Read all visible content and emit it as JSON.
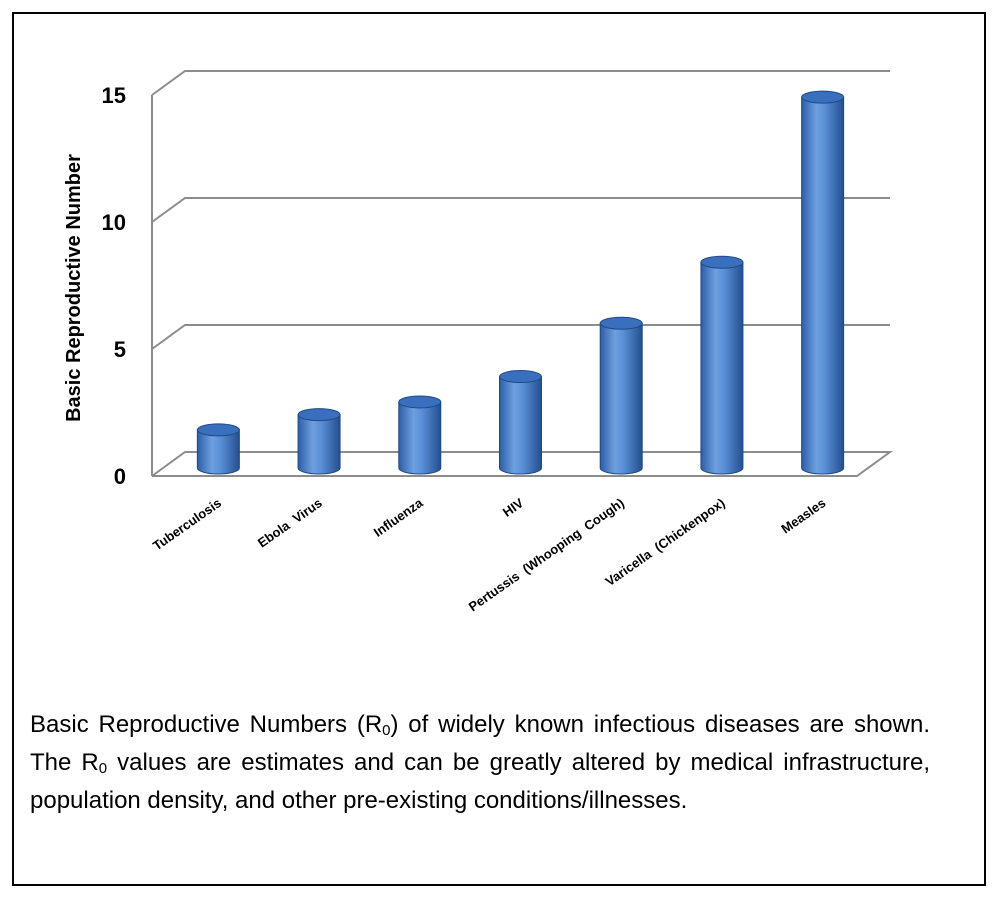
{
  "chart_data": {
    "type": "bar",
    "style": "3d-cylinder",
    "categories": [
      "Tuberculosis",
      "Ebola  Virus",
      "Influenza",
      "HIV",
      "Pertussis  (Whooping  Cough)",
      "Varicella  (Chickenpox)",
      "Measles"
    ],
    "values": [
      1.5,
      2.1,
      2.6,
      3.6,
      5.7,
      8.1,
      14.6
    ],
    "ylabel": "Basic Reproductive Number",
    "xlabel": "",
    "ylim": [
      0,
      15
    ],
    "yticks": [
      0,
      5,
      10,
      15
    ],
    "grid": true,
    "bar_color": "#4f81c7",
    "grid_color": "#8c8c8c"
  },
  "caption": {
    "part1": "Basic Reproductive Numbers (R",
    "sub1": "0",
    "part2": ") of widely known infectious diseases are shown. The R",
    "sub2": "0",
    "part3": " values are estimates and can be greatly altered by medical infrastructure, population density, and other pre-existing conditions/illnesses."
  }
}
